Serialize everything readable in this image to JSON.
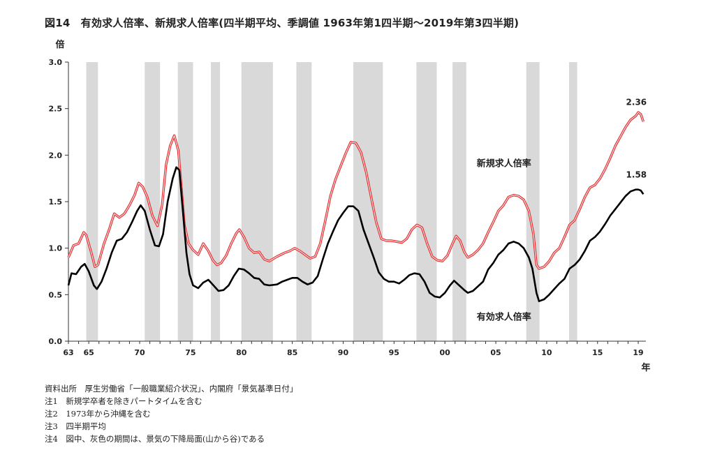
{
  "title": "図14　有効求人倍率、新規求人倍率(四半期平均、季調値 1963年第1四半期～2019年第3四半期)",
  "chart_data": {
    "type": "line",
    "ylabel": "倍",
    "xlabel": "年",
    "ylim": [
      0,
      3.0
    ],
    "xlim": [
      1963,
      2019.75
    ],
    "y_ticks": [
      "0.0",
      "0.5",
      "1.0",
      "1.5",
      "2.0",
      "2.5",
      "3.0"
    ],
    "x_ticks": [
      {
        "x": 1963,
        "label": "63"
      },
      {
        "x": 1965,
        "label": "65"
      },
      {
        "x": 1970,
        "label": "70"
      },
      {
        "x": 1975,
        "label": "75"
      },
      {
        "x": 1980,
        "label": "80"
      },
      {
        "x": 1985,
        "label": "85"
      },
      {
        "x": 1990,
        "label": "90"
      },
      {
        "x": 1995,
        "label": "95"
      },
      {
        "x": 2000,
        "label": "00"
      },
      {
        "x": 2005,
        "label": "05"
      },
      {
        "x": 2010,
        "label": "10"
      },
      {
        "x": 2015,
        "label": "15"
      },
      {
        "x": 2019,
        "label": "19"
      }
    ],
    "grid": false,
    "recessions": [
      [
        1964.75,
        1965.9
      ],
      [
        1970.5,
        1972.0
      ],
      [
        1973.75,
        1975.25
      ],
      [
        1977.0,
        1977.9
      ],
      [
        1980.0,
        1983.1
      ],
      [
        1985.4,
        1986.9
      ],
      [
        1991.0,
        1993.9
      ],
      [
        1997.2,
        1999.2
      ],
      [
        2000.75,
        2002.1
      ],
      [
        2008.0,
        2009.3
      ],
      [
        2012.2,
        2013.0
      ]
    ],
    "series": [
      {
        "name": "新規求人倍率",
        "color": "#e8272a",
        "end_label": "2.36",
        "points": [
          [
            1963.0,
            0.9
          ],
          [
            1963.5,
            1.03
          ],
          [
            1964.0,
            1.05
          ],
          [
            1964.5,
            1.17
          ],
          [
            1964.75,
            1.14
          ],
          [
            1965.25,
            0.95
          ],
          [
            1965.6,
            0.8
          ],
          [
            1965.9,
            0.82
          ],
          [
            1966.5,
            1.05
          ],
          [
            1967.0,
            1.2
          ],
          [
            1967.5,
            1.37
          ],
          [
            1968.0,
            1.33
          ],
          [
            1968.5,
            1.37
          ],
          [
            1969.0,
            1.46
          ],
          [
            1969.5,
            1.57
          ],
          [
            1969.9,
            1.7
          ],
          [
            1970.3,
            1.66
          ],
          [
            1970.75,
            1.55
          ],
          [
            1971.25,
            1.35
          ],
          [
            1971.75,
            1.24
          ],
          [
            1972.2,
            1.46
          ],
          [
            1972.6,
            1.9
          ],
          [
            1973.0,
            2.1
          ],
          [
            1973.4,
            2.21
          ],
          [
            1973.8,
            2.05
          ],
          [
            1974.1,
            1.65
          ],
          [
            1974.4,
            1.25
          ],
          [
            1974.8,
            1.05
          ],
          [
            1975.25,
            0.98
          ],
          [
            1975.75,
            0.93
          ],
          [
            1976.25,
            1.05
          ],
          [
            1976.75,
            0.97
          ],
          [
            1977.2,
            0.87
          ],
          [
            1977.6,
            0.82
          ],
          [
            1978.0,
            0.84
          ],
          [
            1978.5,
            0.92
          ],
          [
            1979.0,
            1.05
          ],
          [
            1979.5,
            1.16
          ],
          [
            1979.8,
            1.2
          ],
          [
            1980.25,
            1.12
          ],
          [
            1980.75,
            1.0
          ],
          [
            1981.25,
            0.95
          ],
          [
            1981.75,
            0.96
          ],
          [
            1982.25,
            0.88
          ],
          [
            1982.75,
            0.86
          ],
          [
            1983.5,
            0.91
          ],
          [
            1984.25,
            0.95
          ],
          [
            1984.75,
            0.97
          ],
          [
            1985.25,
            1.0
          ],
          [
            1985.75,
            0.97
          ],
          [
            1986.25,
            0.93
          ],
          [
            1986.75,
            0.89
          ],
          [
            1987.25,
            0.91
          ],
          [
            1987.75,
            1.05
          ],
          [
            1988.25,
            1.3
          ],
          [
            1988.75,
            1.56
          ],
          [
            1989.25,
            1.74
          ],
          [
            1989.75,
            1.88
          ],
          [
            1990.25,
            2.02
          ],
          [
            1990.75,
            2.14
          ],
          [
            1991.25,
            2.13
          ],
          [
            1991.75,
            2.03
          ],
          [
            1992.25,
            1.82
          ],
          [
            1992.75,
            1.55
          ],
          [
            1993.25,
            1.28
          ],
          [
            1993.75,
            1.1
          ],
          [
            1994.25,
            1.08
          ],
          [
            1994.75,
            1.08
          ],
          [
            1995.25,
            1.07
          ],
          [
            1995.75,
            1.06
          ],
          [
            1996.25,
            1.1
          ],
          [
            1996.75,
            1.2
          ],
          [
            1997.25,
            1.25
          ],
          [
            1997.75,
            1.22
          ],
          [
            1998.25,
            1.05
          ],
          [
            1998.75,
            0.91
          ],
          [
            1999.25,
            0.87
          ],
          [
            1999.75,
            0.86
          ],
          [
            2000.25,
            0.92
          ],
          [
            2000.75,
            1.05
          ],
          [
            2001.1,
            1.13
          ],
          [
            2001.5,
            1.08
          ],
          [
            2001.9,
            0.96
          ],
          [
            2002.25,
            0.9
          ],
          [
            2002.75,
            0.93
          ],
          [
            2003.25,
            0.98
          ],
          [
            2003.75,
            1.05
          ],
          [
            2004.25,
            1.17
          ],
          [
            2004.75,
            1.28
          ],
          [
            2005.25,
            1.4
          ],
          [
            2005.75,
            1.46
          ],
          [
            2006.25,
            1.55
          ],
          [
            2006.75,
            1.57
          ],
          [
            2007.25,
            1.56
          ],
          [
            2007.75,
            1.52
          ],
          [
            2008.25,
            1.4
          ],
          [
            2008.7,
            1.15
          ],
          [
            2009.0,
            0.82
          ],
          [
            2009.25,
            0.78
          ],
          [
            2009.75,
            0.8
          ],
          [
            2010.25,
            0.86
          ],
          [
            2010.75,
            0.95
          ],
          [
            2011.25,
            1.0
          ],
          [
            2011.75,
            1.12
          ],
          [
            2012.25,
            1.25
          ],
          [
            2012.75,
            1.3
          ],
          [
            2013.25,
            1.42
          ],
          [
            2013.75,
            1.55
          ],
          [
            2014.25,
            1.65
          ],
          [
            2014.75,
            1.68
          ],
          [
            2015.25,
            1.75
          ],
          [
            2015.75,
            1.85
          ],
          [
            2016.25,
            1.97
          ],
          [
            2016.75,
            2.1
          ],
          [
            2017.25,
            2.2
          ],
          [
            2017.75,
            2.3
          ],
          [
            2018.25,
            2.38
          ],
          [
            2018.75,
            2.42
          ],
          [
            2019.0,
            2.46
          ],
          [
            2019.25,
            2.44
          ],
          [
            2019.5,
            2.36
          ]
        ]
      },
      {
        "name": "有効求人倍率",
        "color": "#000000",
        "end_label": "1.58",
        "points": [
          [
            1963.0,
            0.6
          ],
          [
            1963.3,
            0.73
          ],
          [
            1963.75,
            0.72
          ],
          [
            1964.25,
            0.8
          ],
          [
            1964.6,
            0.83
          ],
          [
            1965.0,
            0.75
          ],
          [
            1965.5,
            0.6
          ],
          [
            1965.8,
            0.56
          ],
          [
            1966.25,
            0.64
          ],
          [
            1966.75,
            0.78
          ],
          [
            1967.25,
            0.95
          ],
          [
            1967.75,
            1.08
          ],
          [
            1968.25,
            1.1
          ],
          [
            1968.75,
            1.17
          ],
          [
            1969.25,
            1.28
          ],
          [
            1969.75,
            1.4
          ],
          [
            1970.1,
            1.46
          ],
          [
            1970.5,
            1.4
          ],
          [
            1971.0,
            1.2
          ],
          [
            1971.5,
            1.03
          ],
          [
            1971.9,
            1.02
          ],
          [
            1972.3,
            1.15
          ],
          [
            1972.75,
            1.5
          ],
          [
            1973.25,
            1.75
          ],
          [
            1973.6,
            1.87
          ],
          [
            1973.9,
            1.84
          ],
          [
            1974.25,
            1.4
          ],
          [
            1974.6,
            0.95
          ],
          [
            1974.9,
            0.72
          ],
          [
            1975.25,
            0.6
          ],
          [
            1975.75,
            0.57
          ],
          [
            1976.25,
            0.63
          ],
          [
            1976.75,
            0.66
          ],
          [
            1977.25,
            0.6
          ],
          [
            1977.75,
            0.54
          ],
          [
            1978.25,
            0.55
          ],
          [
            1978.75,
            0.6
          ],
          [
            1979.25,
            0.7
          ],
          [
            1979.75,
            0.78
          ],
          [
            1980.25,
            0.77
          ],
          [
            1980.75,
            0.73
          ],
          [
            1981.25,
            0.68
          ],
          [
            1981.75,
            0.67
          ],
          [
            1982.25,
            0.61
          ],
          [
            1982.75,
            0.6
          ],
          [
            1983.5,
            0.61
          ],
          [
            1984.0,
            0.64
          ],
          [
            1984.5,
            0.66
          ],
          [
            1985.0,
            0.68
          ],
          [
            1985.5,
            0.68
          ],
          [
            1986.0,
            0.64
          ],
          [
            1986.5,
            0.61
          ],
          [
            1987.0,
            0.63
          ],
          [
            1987.5,
            0.7
          ],
          [
            1988.0,
            0.88
          ],
          [
            1988.5,
            1.05
          ],
          [
            1989.0,
            1.18
          ],
          [
            1989.5,
            1.3
          ],
          [
            1990.0,
            1.38
          ],
          [
            1990.5,
            1.45
          ],
          [
            1991.0,
            1.45
          ],
          [
            1991.5,
            1.4
          ],
          [
            1992.0,
            1.2
          ],
          [
            1992.5,
            1.05
          ],
          [
            1993.0,
            0.9
          ],
          [
            1993.5,
            0.74
          ],
          [
            1994.0,
            0.67
          ],
          [
            1994.5,
            0.64
          ],
          [
            1995.0,
            0.64
          ],
          [
            1995.5,
            0.62
          ],
          [
            1996.0,
            0.66
          ],
          [
            1996.5,
            0.71
          ],
          [
            1997.0,
            0.73
          ],
          [
            1997.5,
            0.72
          ],
          [
            1998.0,
            0.64
          ],
          [
            1998.5,
            0.52
          ],
          [
            1999.0,
            0.48
          ],
          [
            1999.5,
            0.47
          ],
          [
            2000.0,
            0.52
          ],
          [
            2000.5,
            0.6
          ],
          [
            2000.9,
            0.65
          ],
          [
            2001.4,
            0.6
          ],
          [
            2001.9,
            0.55
          ],
          [
            2002.25,
            0.52
          ],
          [
            2002.75,
            0.54
          ],
          [
            2003.25,
            0.59
          ],
          [
            2003.75,
            0.64
          ],
          [
            2004.25,
            0.77
          ],
          [
            2004.75,
            0.84
          ],
          [
            2005.25,
            0.93
          ],
          [
            2005.75,
            0.98
          ],
          [
            2006.25,
            1.05
          ],
          [
            2006.75,
            1.07
          ],
          [
            2007.25,
            1.05
          ],
          [
            2007.75,
            1.0
          ],
          [
            2008.25,
            0.9
          ],
          [
            2008.6,
            0.78
          ],
          [
            2009.0,
            0.52
          ],
          [
            2009.25,
            0.43
          ],
          [
            2009.75,
            0.45
          ],
          [
            2010.25,
            0.5
          ],
          [
            2010.75,
            0.56
          ],
          [
            2011.25,
            0.62
          ],
          [
            2011.75,
            0.67
          ],
          [
            2012.25,
            0.78
          ],
          [
            2012.75,
            0.82
          ],
          [
            2013.25,
            0.88
          ],
          [
            2013.75,
            0.97
          ],
          [
            2014.25,
            1.08
          ],
          [
            2014.75,
            1.12
          ],
          [
            2015.25,
            1.18
          ],
          [
            2015.75,
            1.26
          ],
          [
            2016.25,
            1.35
          ],
          [
            2016.75,
            1.42
          ],
          [
            2017.25,
            1.49
          ],
          [
            2017.75,
            1.56
          ],
          [
            2018.25,
            1.61
          ],
          [
            2018.75,
            1.63
          ],
          [
            2019.0,
            1.63
          ],
          [
            2019.25,
            1.62
          ],
          [
            2019.5,
            1.58
          ]
        ]
      }
    ],
    "annotations": [
      {
        "text": "新規求人倍率",
        "series": 0,
        "x": 2005.8,
        "y": 1.88
      },
      {
        "text": "有効求人倍率",
        "series": 1,
        "x": 2005.8,
        "y": 0.23
      }
    ]
  },
  "notes": [
    "資料出所　厚生労働省「一般職業紹介状況」、内閣府「景気基準日付」",
    "注1　新規学卒者を除きパートタイムを含む",
    "注2　1973年から沖縄を含む",
    "注3　四半期平均",
    "注4　図中、灰色の期間は、景気の下降局面(山から谷)である"
  ]
}
